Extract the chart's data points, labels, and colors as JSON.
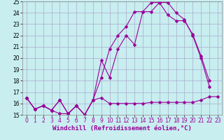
{
  "xlabel": "Windchill (Refroidissement éolien,°C)",
  "bg_color": "#c8eef0",
  "grid_color": "#aaaacc",
  "line_color": "#990099",
  "xlim": [
    -0.5,
    23.5
  ],
  "ylim": [
    15,
    25
  ],
  "yticks": [
    15,
    16,
    17,
    18,
    19,
    20,
    21,
    22,
    23,
    24,
    25
  ],
  "xticks": [
    0,
    1,
    2,
    3,
    4,
    5,
    6,
    7,
    8,
    9,
    10,
    11,
    12,
    13,
    14,
    15,
    16,
    17,
    18,
    19,
    20,
    21,
    22,
    23
  ],
  "line1_x": [
    0,
    1,
    2,
    3,
    4,
    5,
    6,
    7,
    8,
    9,
    10,
    11,
    12,
    13,
    14,
    15,
    16,
    17,
    18,
    19,
    20,
    21,
    22,
    23
  ],
  "line1_y": [
    16.5,
    15.5,
    15.8,
    15.4,
    15.1,
    15.1,
    15.8,
    15.0,
    16.3,
    16.5,
    16.0,
    16.0,
    16.0,
    16.0,
    16.0,
    16.1,
    16.1,
    16.1,
    16.1,
    16.1,
    16.1,
    16.3,
    16.6,
    16.6
  ],
  "line2_x": [
    0,
    1,
    2,
    3,
    4,
    5,
    6,
    7,
    8,
    9,
    10,
    11,
    12,
    13,
    14,
    15,
    16,
    17,
    18,
    19,
    20,
    21,
    22,
    23
  ],
  "line2_y": [
    16.5,
    15.5,
    15.8,
    15.4,
    16.3,
    15.1,
    15.8,
    15.0,
    16.3,
    19.8,
    18.3,
    20.8,
    22.0,
    21.2,
    24.1,
    24.1,
    24.9,
    24.9,
    24.0,
    23.4,
    22.0,
    20.0,
    17.5,
    null
  ],
  "line3_x": [
    0,
    1,
    2,
    3,
    4,
    5,
    6,
    7,
    8,
    9,
    10,
    11,
    12,
    13,
    14,
    15,
    16,
    17,
    18,
    19,
    20,
    21,
    22,
    23
  ],
  "line3_y": [
    16.5,
    15.5,
    15.8,
    15.4,
    16.3,
    15.1,
    15.8,
    15.0,
    16.3,
    18.3,
    20.8,
    22.0,
    22.8,
    24.1,
    24.1,
    24.9,
    24.9,
    23.8,
    23.3,
    23.3,
    22.1,
    20.2,
    18.0,
    null
  ],
  "marker": "D",
  "markersize": 2.5,
  "linewidth": 0.8,
  "xlabel_fontsize": 6.5,
  "tick_fontsize": 5.5
}
